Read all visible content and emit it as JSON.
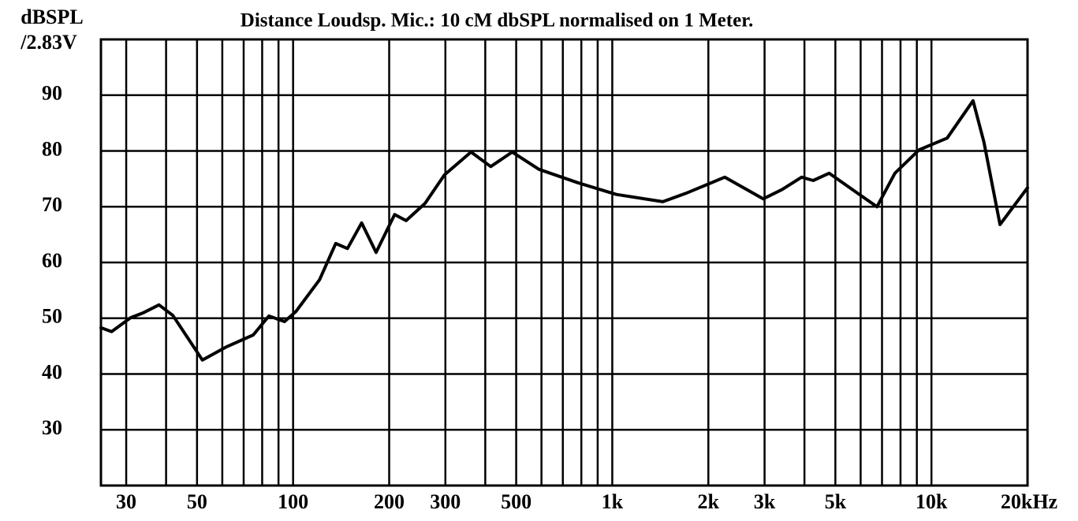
{
  "chart_data": {
    "type": "line",
    "title": "Distance Loudsp. Mic.: 10 cM dbSPL normalised on 1 Meter.",
    "ylabel": [
      "dBSPL",
      "/2.83V"
    ],
    "xscale": "log",
    "xlim": [
      25,
      20000
    ],
    "ylim": [
      20,
      100
    ],
    "yticks": [
      30,
      40,
      50,
      60,
      70,
      80,
      90
    ],
    "xticks": [
      30,
      50,
      100,
      200,
      300,
      500,
      {
        "value": 1000,
        "label": "1k"
      },
      {
        "value": 2000,
        "label": "2k"
      },
      {
        "value": 3000,
        "label": "3k"
      },
      {
        "value": 5000,
        "label": "5k"
      },
      {
        "value": 10000,
        "label": "10k"
      },
      {
        "value": 20000,
        "label": "20kHz"
      }
    ],
    "x_minor_ticks": [
      40,
      60,
      70,
      80,
      90,
      400,
      600,
      700,
      800,
      900,
      4000,
      6000,
      7000,
      8000,
      9000
    ],
    "grid": true,
    "x": [
      25,
      27,
      31,
      34,
      38,
      42,
      52,
      62,
      75,
      84,
      94,
      102,
      121,
      136,
      148,
      164,
      182,
      208,
      226,
      259,
      298,
      361,
      416,
      486,
      589,
      780,
      1030,
      1440,
      1700,
      2250,
      2970,
      3410,
      3920,
      4260,
      4780,
      5810,
      6750,
      7680,
      9150,
      11200,
      13500,
      14600,
      16400,
      20000
    ],
    "series": [
      {
        "color": "#000000",
        "values": [
          48.3,
          47.6,
          50.1,
          51,
          52.4,
          50.5,
          42.5,
          44.9,
          47,
          50.4,
          49.4,
          51.2,
          56.9,
          63.4,
          62.5,
          67.1,
          61.8,
          68.6,
          67.5,
          70.6,
          75.7,
          79.8,
          77.2,
          79.8,
          76.7,
          74.3,
          72.2,
          70.9,
          72.4,
          75.3,
          71.4,
          73.1,
          75.3,
          74.7,
          76,
          72.6,
          70,
          76,
          80.2,
          82.3,
          89,
          81.6,
          66.8,
          73.4
        ]
      }
    ]
  }
}
